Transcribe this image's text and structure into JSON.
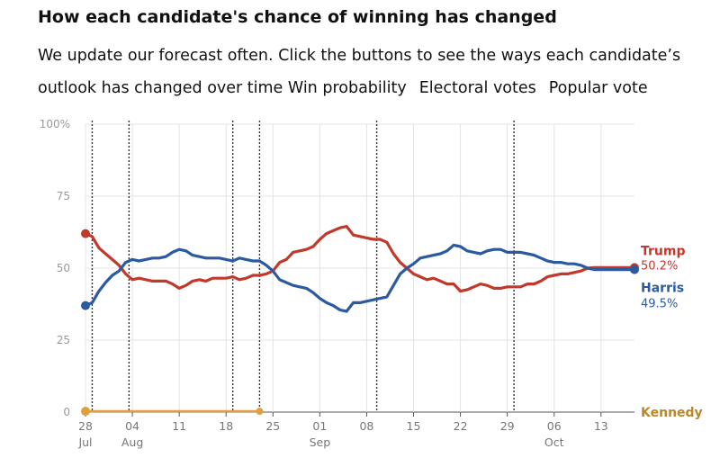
{
  "header": {
    "title": "How each candidate's chance of winning has changed",
    "subtitle": "We update our forecast often. Click the buttons to see the ways each candidate’s outlook has changed over time",
    "buttons": [
      "Win probability",
      "Electoral votes",
      "Popular vote"
    ]
  },
  "chart_data": {
    "type": "line",
    "title": "How each candidate's chance of winning has changed",
    "xlabel": "",
    "ylabel": "",
    "ylim": [
      0,
      100
    ],
    "xlim": [
      0,
      82
    ],
    "y_ticks": [
      {
        "value": 0,
        "label": "0"
      },
      {
        "value": 25,
        "label": "25"
      },
      {
        "value": 50,
        "label": "50"
      },
      {
        "value": 75,
        "label": "75"
      },
      {
        "value": 100,
        "label": "100%"
      }
    ],
    "x_ticks": [
      {
        "day": 0,
        "label": "28",
        "sub": "Jul"
      },
      {
        "day": 7,
        "label": "04",
        "sub": "Aug"
      },
      {
        "day": 14,
        "label": "11",
        "sub": ""
      },
      {
        "day": 21,
        "label": "18",
        "sub": ""
      },
      {
        "day": 28,
        "label": "25",
        "sub": ""
      },
      {
        "day": 35,
        "label": "01",
        "sub": "Sep"
      },
      {
        "day": 42,
        "label": "08",
        "sub": ""
      },
      {
        "day": 49,
        "label": "15",
        "sub": ""
      },
      {
        "day": 56,
        "label": "22",
        "sub": ""
      },
      {
        "day": 63,
        "label": "29",
        "sub": ""
      },
      {
        "day": 70,
        "label": "06",
        "sub": "Oct"
      },
      {
        "day": 77,
        "label": "13",
        "sub": ""
      }
    ],
    "event_lines": [
      1,
      6.5,
      22,
      26,
      43.5,
      64
    ],
    "series": [
      {
        "name": "Trump",
        "label": "Trump",
        "value_label": "50.2%",
        "color": "#c0392b",
        "x": [
          0,
          1,
          2,
          3,
          4,
          5,
          6,
          7,
          8,
          9,
          10,
          11,
          12,
          13,
          14,
          15,
          16,
          17,
          18,
          19,
          20,
          21,
          22,
          23,
          24,
          25,
          26,
          27,
          28,
          29,
          30,
          31,
          32,
          33,
          34,
          35,
          36,
          37,
          38,
          39,
          40,
          41,
          42,
          43,
          44,
          45,
          46,
          47,
          48,
          49,
          50,
          51,
          52,
          53,
          54,
          55,
          56,
          57,
          58,
          59,
          60,
          61,
          62,
          63,
          64,
          65,
          66,
          67,
          68,
          69,
          70,
          71,
          72,
          73,
          74,
          75,
          76,
          77,
          78,
          79,
          80,
          81,
          82
        ],
        "values": [
          62,
          61,
          57,
          55,
          53,
          51,
          48,
          46,
          46.5,
          46,
          45.5,
          45.5,
          45.5,
          44.5,
          43,
          44,
          45.5,
          46,
          45.5,
          46.5,
          46.5,
          46.5,
          47,
          46,
          46.5,
          47.5,
          47.5,
          48,
          49,
          52,
          53,
          55.5,
          56,
          56.5,
          57.5,
          60,
          62,
          63,
          64,
          64.5,
          61.5,
          61,
          60.5,
          60,
          60,
          59,
          55,
          52,
          50,
          48,
          47,
          46,
          46.5,
          45.5,
          44.5,
          44.5,
          42,
          42.5,
          43.5,
          44.5,
          44,
          43,
          43,
          43.5,
          43.5,
          43.5,
          44.5,
          44.5,
          45.5,
          47,
          47.5,
          48,
          48,
          48.5,
          49,
          50,
          50.2,
          50.2,
          50.2,
          50.2,
          50.2,
          50.2,
          50.2
        ]
      },
      {
        "name": "Harris",
        "label": "Harris",
        "value_label": "49.5%",
        "color": "#2c5aa0",
        "x": [
          0,
          1,
          2,
          3,
          4,
          5,
          6,
          7,
          8,
          9,
          10,
          11,
          12,
          13,
          14,
          15,
          16,
          17,
          18,
          19,
          20,
          21,
          22,
          23,
          24,
          25,
          26,
          27,
          28,
          29,
          30,
          31,
          32,
          33,
          34,
          35,
          36,
          37,
          38,
          39,
          40,
          41,
          42,
          43,
          44,
          45,
          46,
          47,
          48,
          49,
          50,
          51,
          52,
          53,
          54,
          55,
          56,
          57,
          58,
          59,
          60,
          61,
          62,
          63,
          64,
          65,
          66,
          67,
          68,
          69,
          70,
          71,
          72,
          73,
          74,
          75,
          76,
          77,
          78,
          79,
          80,
          81,
          82
        ],
        "values": [
          37,
          38,
          42,
          45,
          47.5,
          49,
          52,
          53,
          52.5,
          53,
          53.5,
          53.5,
          54,
          55.5,
          56.5,
          56,
          54.5,
          54,
          53.5,
          53.5,
          53.5,
          53,
          52.5,
          53.5,
          53,
          52.5,
          52.5,
          51,
          49,
          46,
          45,
          44,
          43.5,
          43,
          41.5,
          39.5,
          38,
          37,
          35.5,
          35,
          38,
          38,
          38.5,
          39,
          39.5,
          40,
          44,
          48,
          50,
          51.5,
          53.5,
          54,
          54.5,
          55,
          56,
          58,
          57.5,
          56,
          55.5,
          55,
          56,
          56.5,
          56.5,
          55.5,
          55.5,
          55.5,
          55,
          54.5,
          53.5,
          52.5,
          52,
          52,
          51.5,
          51.5,
          51,
          50,
          49.5,
          49.5,
          49.5,
          49.5,
          49.5,
          49.5,
          49.5
        ]
      },
      {
        "name": "Kennedy",
        "label": "Kennedy",
        "value_label": "",
        "color": "#e0a040",
        "x": [
          0,
          26
        ],
        "values": [
          0.3,
          0.3
        ]
      }
    ]
  }
}
